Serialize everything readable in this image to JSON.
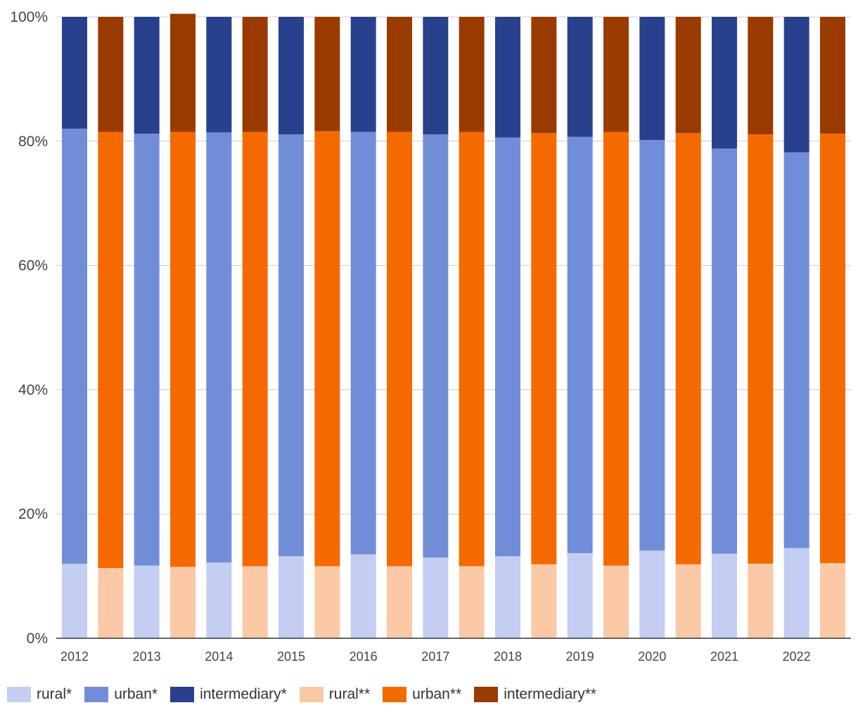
{
  "chart_data": {
    "type": "bar",
    "stacked": true,
    "title": "",
    "xlabel": "",
    "ylabel": "",
    "ylim": [
      0,
      100
    ],
    "y_ticks": [
      "0%",
      "20%",
      "40%",
      "60%",
      "80%",
      "100%"
    ],
    "x_tick_labels": [
      "2012",
      "2013",
      "2014",
      "2015",
      "2016",
      "2017",
      "2018",
      "2019",
      "2020",
      "2021",
      "2022"
    ],
    "grid": true,
    "legend_position": "bottom-left",
    "groups": [
      "*",
      "**"
    ],
    "legend": [
      {
        "name": "rural*",
        "color": "#c3cef2"
      },
      {
        "name": "urban*",
        "color": "#728dd8"
      },
      {
        "name": "intermediary*",
        "color": "#29408c"
      },
      {
        "name": "rural**",
        "color": "#fbc9a5"
      },
      {
        "name": "urban**",
        "color": "#f56a00"
      },
      {
        "name": "intermediary**",
        "color": "#993a00"
      }
    ],
    "bars": [
      {
        "year": "2012",
        "group": "*",
        "rural": 12.0,
        "urban": 70.0,
        "intermediary": 18.0
      },
      {
        "year": "2012",
        "group": "**",
        "rural": 11.3,
        "urban": 70.2,
        "intermediary": 18.5
      },
      {
        "year": "2013",
        "group": "*",
        "rural": 11.7,
        "urban": 69.5,
        "intermediary": 18.8
      },
      {
        "year": "2013",
        "group": "**",
        "rural": 11.5,
        "urban": 70.0,
        "intermediary": 19.0
      },
      {
        "year": "2014",
        "group": "*",
        "rural": 12.2,
        "urban": 69.2,
        "intermediary": 18.6
      },
      {
        "year": "2014",
        "group": "**",
        "rural": 11.6,
        "urban": 69.9,
        "intermediary": 18.5
      },
      {
        "year": "2015",
        "group": "*",
        "rural": 13.2,
        "urban": 67.9,
        "intermediary": 18.9
      },
      {
        "year": "2015",
        "group": "**",
        "rural": 11.6,
        "urban": 70.0,
        "intermediary": 18.4
      },
      {
        "year": "2016",
        "group": "*",
        "rural": 13.5,
        "urban": 68.0,
        "intermediary": 18.5
      },
      {
        "year": "2016",
        "group": "**",
        "rural": 11.6,
        "urban": 69.9,
        "intermediary": 18.5
      },
      {
        "year": "2017",
        "group": "*",
        "rural": 13.0,
        "urban": 68.1,
        "intermediary": 18.9
      },
      {
        "year": "2017",
        "group": "**",
        "rural": 11.6,
        "urban": 69.9,
        "intermediary": 18.5
      },
      {
        "year": "2018",
        "group": "*",
        "rural": 13.2,
        "urban": 67.4,
        "intermediary": 19.4
      },
      {
        "year": "2018",
        "group": "**",
        "rural": 11.9,
        "urban": 69.4,
        "intermediary": 18.7
      },
      {
        "year": "2019",
        "group": "*",
        "rural": 13.7,
        "urban": 67.0,
        "intermediary": 19.3
      },
      {
        "year": "2019",
        "group": "**",
        "rural": 11.7,
        "urban": 69.8,
        "intermediary": 18.5
      },
      {
        "year": "2020",
        "group": "*",
        "rural": 14.1,
        "urban": 66.1,
        "intermediary": 19.8
      },
      {
        "year": "2020",
        "group": "**",
        "rural": 11.9,
        "urban": 69.4,
        "intermediary": 18.7
      },
      {
        "year": "2021",
        "group": "*",
        "rural": 13.6,
        "urban": 65.2,
        "intermediary": 21.2
      },
      {
        "year": "2021",
        "group": "**",
        "rural": 12.0,
        "urban": 69.1,
        "intermediary": 18.9
      },
      {
        "year": "2022",
        "group": "*",
        "rural": 14.5,
        "urban": 63.7,
        "intermediary": 21.8
      },
      {
        "year": "2022",
        "group": "**",
        "rural": 12.1,
        "urban": 69.1,
        "intermediary": 18.8
      }
    ]
  }
}
